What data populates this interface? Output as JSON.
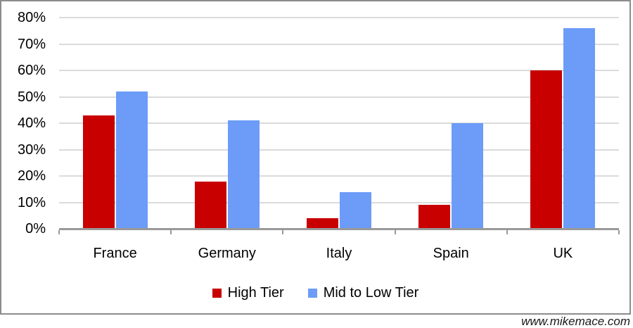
{
  "chart_data": {
    "type": "bar",
    "title": "",
    "xlabel": "",
    "ylabel": "",
    "categories": [
      "France",
      "Germany",
      "Italy",
      "Spain",
      "UK"
    ],
    "series": [
      {
        "name": "High Tier",
        "color": "#C80000",
        "values": [
          43,
          18,
          4,
          9,
          60
        ]
      },
      {
        "name": "Mid to Low Tier",
        "color": "#6C9CF8",
        "values": [
          52,
          41,
          14,
          40,
          76
        ]
      }
    ],
    "ylim": [
      0,
      80
    ],
    "ytick_step": 10,
    "ytick_labels": [
      "0%",
      "10%",
      "20%",
      "30%",
      "40%",
      "50%",
      "60%",
      "70%",
      "80%"
    ],
    "ytick_format": "percent",
    "grid": true,
    "legend_position": "bottom"
  },
  "colors": {
    "gridline": "#DBDBDB",
    "axis": "#999999",
    "frame_border": "#8C8C8C",
    "background": "#FFFFFF"
  },
  "watermark": {
    "text": "www.mikemace.com"
  }
}
